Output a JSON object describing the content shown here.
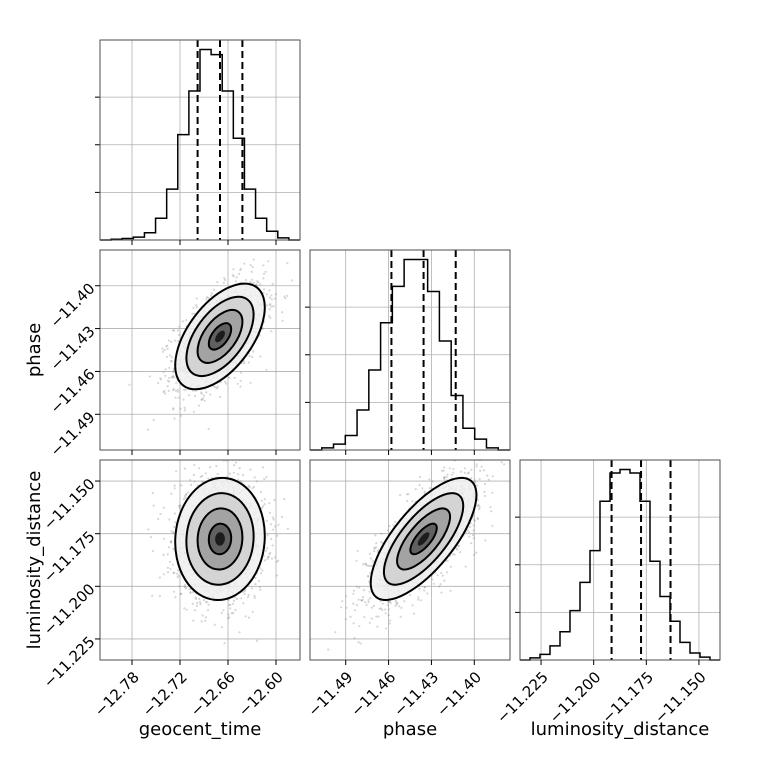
{
  "chart_data": {
    "type": "corner",
    "parameters": [
      {
        "name": "geocent_time",
        "range": [
          -12.82,
          -12.57
        ],
        "ticks": [
          -12.78,
          -12.72,
          -12.66,
          -12.6
        ],
        "tick_labels": [
          "−12.78",
          "−12.72",
          "−12.66",
          "−12.60"
        ],
        "quantiles": [
          -12.698,
          -12.67,
          -12.642
        ],
        "hist_counts": [
          0,
          1,
          2,
          4,
          10,
          30,
          70,
          145,
          205,
          262,
          255,
          205,
          140,
          70,
          30,
          12,
          3,
          0
        ]
      },
      {
        "name": "phase",
        "range": [
          -11.515,
          -11.375
        ],
        "ticks": [
          -11.49,
          -11.46,
          -11.43,
          -11.4
        ],
        "tick_labels": [
          "−11.49",
          "−11.46",
          "−11.43",
          "−11.40"
        ],
        "quantiles": [
          -11.458,
          -11.4355,
          -11.413
        ],
        "hist_counts": [
          0,
          3,
          8,
          20,
          55,
          110,
          175,
          225,
          262,
          262,
          218,
          150,
          75,
          30,
          15,
          3,
          0
        ]
      },
      {
        "name": "luminosity_distance",
        "range": [
          -11.235,
          -11.14
        ],
        "ticks": [
          -11.225,
          -11.2,
          -11.175,
          -11.15
        ],
        "tick_labels": [
          "−11.225",
          "−11.200",
          "−11.175",
          "−11.150"
        ],
        "quantiles": [
          -11.1915,
          -11.1775,
          -11.1635
        ],
        "hist_counts": [
          0,
          3,
          8,
          20,
          40,
          70,
          110,
          155,
          225,
          265,
          270,
          265,
          225,
          140,
          90,
          55,
          25,
          10,
          4,
          0
        ]
      }
    ],
    "pairs": [
      {
        "x": "geocent_time",
        "y": "phase",
        "mean": [
          -12.67,
          -11.4355
        ],
        "sd": [
          0.028,
          0.0185
        ],
        "corr": 0.55
      },
      {
        "x": "geocent_time",
        "y": "luminosity_distance",
        "mean": [
          -12.67,
          -11.1775
        ],
        "sd": [
          0.028,
          0.0145
        ],
        "corr": 0.05
      },
      {
        "x": "phase",
        "y": "luminosity_distance",
        "mean": [
          -11.4355,
          -11.1775
        ],
        "sd": [
          0.0185,
          0.0145
        ],
        "corr": 0.72
      }
    ],
    "contour_levels_sigma": [
      0.5,
      1.0,
      1.5,
      2.0
    ],
    "grid": true
  }
}
